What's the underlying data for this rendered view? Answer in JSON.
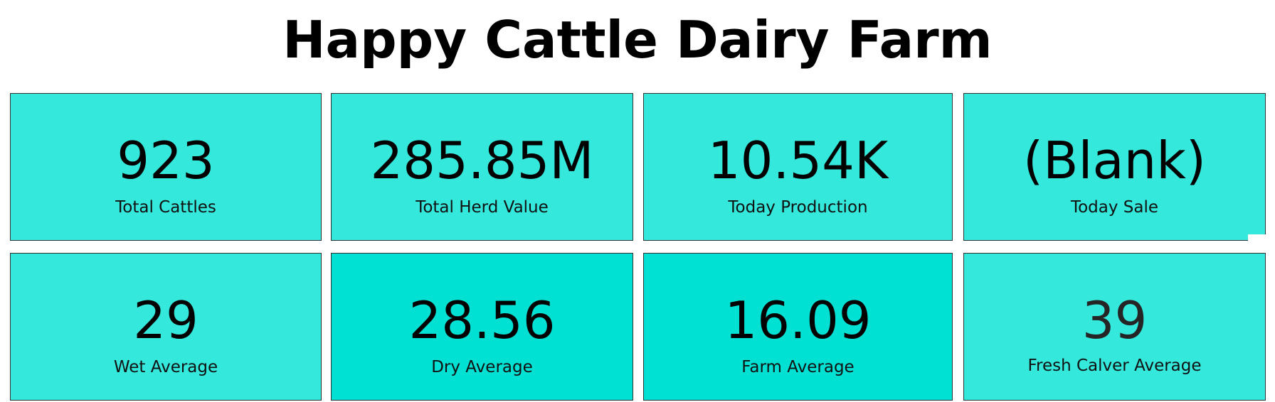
{
  "report": {
    "title": "Happy Cattle Dairy Farm"
  },
  "cards": {
    "total_cattles": {
      "value": "923",
      "label": "Total Cattles"
    },
    "total_herd_value": {
      "value": "285.85M",
      "label": "Total Herd Value"
    },
    "today_production": {
      "value": "10.54K",
      "label": "Today Production"
    },
    "today_sale": {
      "value": "(Blank)",
      "label": "Today Sale"
    },
    "wet_average": {
      "value": "29",
      "label": "Wet Average"
    },
    "dry_average": {
      "value": "28.56",
      "label": "Dry Average"
    },
    "farm_average": {
      "value": "16.09",
      "label": "Farm Average"
    },
    "fresh_calver_average": {
      "value": "39",
      "label": "Fresh Calver Average"
    }
  },
  "colors": {
    "card_light": "#34e8dc",
    "card_dark": "#00e1d4",
    "border": "#333333",
    "text": "#000000"
  }
}
